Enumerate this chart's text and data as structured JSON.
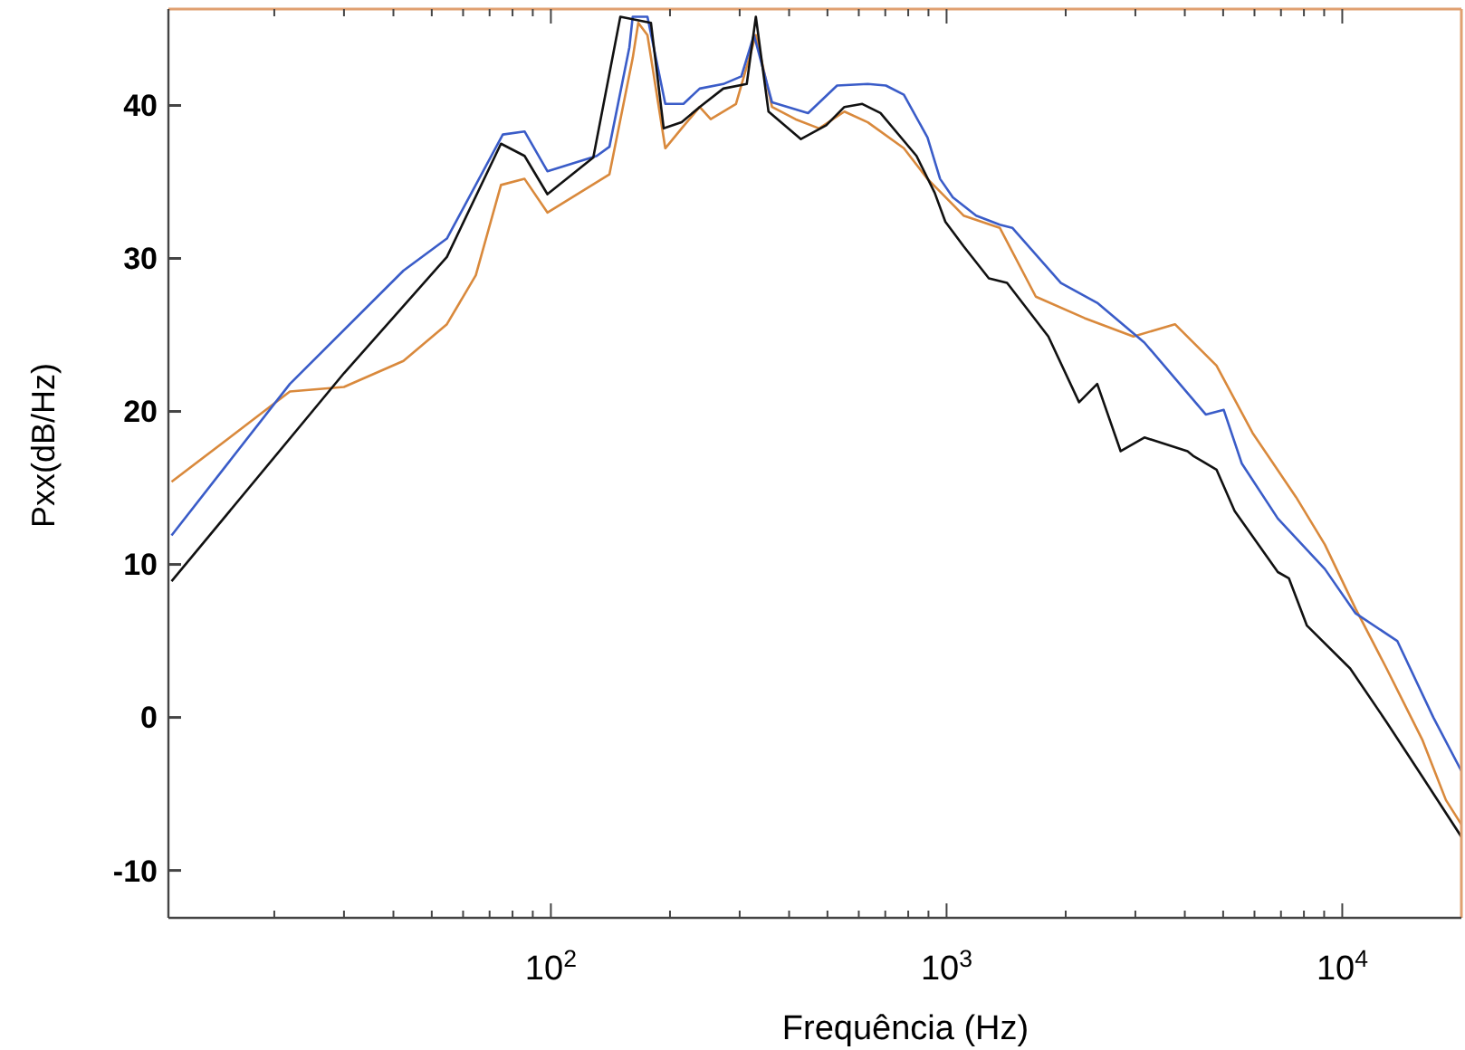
{
  "chart_data": {
    "type": "line",
    "xlabel": "Frequência (Hz)",
    "ylabel": "Pxx(dB/Hz)",
    "log": "x",
    "xlim": [
      10.8,
      20000
    ],
    "ylim": [
      -13.1,
      46.3
    ],
    "xticks": [
      {
        "value": 20,
        "label": null
      },
      {
        "value": 30,
        "label": null
      },
      {
        "value": 40,
        "label": null
      },
      {
        "value": 50,
        "label": null
      },
      {
        "value": 60,
        "label": null
      },
      {
        "value": 70,
        "label": null
      },
      {
        "value": 80,
        "label": null
      },
      {
        "value": 90,
        "label": null
      },
      {
        "value": 100,
        "label": "10$^{2}$"
      },
      {
        "value": 200,
        "label": null
      },
      {
        "value": 300,
        "label": null
      },
      {
        "value": 400,
        "label": null
      },
      {
        "value": 500,
        "label": null
      },
      {
        "value": 600,
        "label": null
      },
      {
        "value": 700,
        "label": null
      },
      {
        "value": 800,
        "label": null
      },
      {
        "value": 900,
        "label": null
      },
      {
        "value": 1000,
        "label": "10$^{3}$"
      },
      {
        "value": 2000,
        "label": null
      },
      {
        "value": 3000,
        "label": null
      },
      {
        "value": 4000,
        "label": null
      },
      {
        "value": 5000,
        "label": null
      },
      {
        "value": 6000,
        "label": null
      },
      {
        "value": 7000,
        "label": null
      },
      {
        "value": 8000,
        "label": null
      },
      {
        "value": 9000,
        "label": null
      },
      {
        "value": 10000,
        "label": "10$^{4}$"
      }
    ],
    "yticks": [
      -10,
      0,
      10,
      20,
      30,
      40
    ],
    "grid": false,
    "marker": "none",
    "line_style": "solid",
    "series": [
      {
        "color": "#d9893c",
        "x": [
          11,
          21.9,
          30,
          42.4,
          54.6,
          64.6,
          74.8,
          85.8,
          98,
          140.6,
          161,
          166.3,
          175.4,
          194.6,
          214,
          237.7,
          253.5,
          293.6,
          329.6,
          362.2,
          415,
          476.4,
          551.8,
          632.4,
          779.9,
          895,
          1104,
          1363,
          1681,
          2232,
          2966,
          3777,
          4810,
          5932,
          7641,
          9036,
          10810,
          12940,
          15960,
          18280,
          20000
        ],
        "values": [
          15.4,
          21.3,
          21.6,
          23.3,
          25.7,
          28.9,
          34.8,
          35.2,
          33,
          35.5,
          43.1,
          45.4,
          44.6,
          37.2,
          38.5,
          39.9,
          39.1,
          40.1,
          44.6,
          39.9,
          39.1,
          38.5,
          39.6,
          38.9,
          37.2,
          35.2,
          32.8,
          32,
          27.5,
          26.1,
          24.9,
          25.7,
          23,
          18.6,
          14.4,
          11.3,
          7.1,
          3.2,
          -1.5,
          -5.4,
          -7
        ]
      },
      {
        "color": "#3a5cc8",
        "x": [
          11,
          21.9,
          42.4,
          54.6,
          75.6,
          85.8,
          98,
          130.6,
          140.6,
          157.9,
          161,
          175.4,
          194.6,
          216.3,
          237.7,
          272.7,
          302.9,
          326,
          362.2,
          446.7,
          528.8,
          632.4,
          702.5,
          779.9,
          895,
          963,
          1037,
          1188,
          1363,
          1466,
          1945,
          2403,
          3162,
          4519,
          5018,
          5572,
          6874,
          9036,
          10810,
          13770,
          16990,
          20000
        ],
        "values": [
          11.9,
          21.8,
          29.2,
          31.3,
          38.1,
          38.3,
          35.7,
          36.7,
          37.3,
          43.8,
          45.8,
          45.8,
          40.1,
          40.1,
          41.1,
          41.4,
          41.9,
          44.6,
          40.2,
          39.5,
          41.3,
          41.4,
          41.3,
          40.7,
          37.9,
          35.2,
          34,
          32.8,
          32.2,
          32,
          28.4,
          27.1,
          24.5,
          19.8,
          20.1,
          16.6,
          13,
          9.7,
          6.8,
          5,
          0,
          -3.5
        ]
      },
      {
        "color": "#111111",
        "x": [
          11,
          30,
          54.6,
          74.8,
          85.8,
          98,
          128,
          149.8,
          179,
          192.8,
          214,
          237.7,
          272.7,
          312.6,
          329.6,
          354.8,
          428.5,
          496.5,
          551.8,
          612.4,
          680.8,
          839.5,
          933,
          993,
          1104,
          1279,
          1422,
          1808,
          2162,
          2403,
          2754,
          3162,
          4064,
          4198,
          4810,
          5345,
          6874,
          7328,
          8142,
          10470,
          12940,
          15960,
          20000
        ],
        "values": [
          8.9,
          22.5,
          30.1,
          37.5,
          36.7,
          34.2,
          36.6,
          45.8,
          45.4,
          38.5,
          38.9,
          39.9,
          41.1,
          41.4,
          45.8,
          39.6,
          37.8,
          38.7,
          39.9,
          40.1,
          39.5,
          36.7,
          34.3,
          32.4,
          30.8,
          28.7,
          28.4,
          24.9,
          20.6,
          21.8,
          17.4,
          18.3,
          17.4,
          17.1,
          16.2,
          13.5,
          9.5,
          9.1,
          6,
          3.2,
          -0.3,
          -3.9,
          -7.8
        ]
      }
    ]
  }
}
